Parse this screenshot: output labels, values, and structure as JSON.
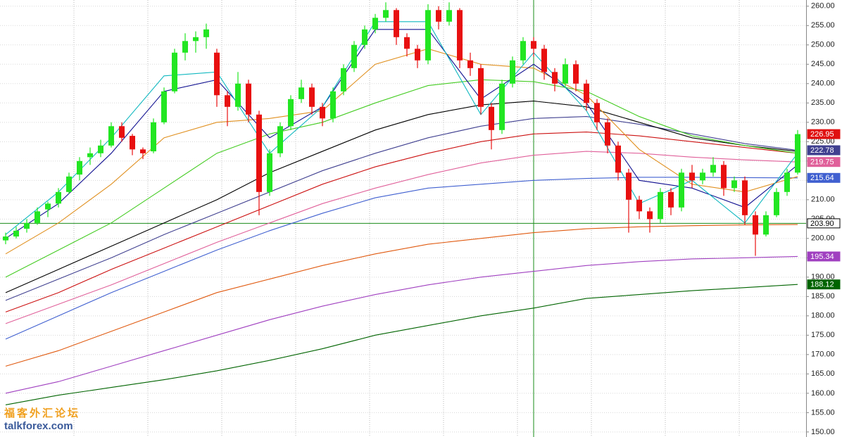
{
  "chart_data": {
    "type": "candlestick",
    "ylim": [
      148.7,
      261.6
    ],
    "yticks": [
      {
        "value": 150,
        "label": "150.00"
      },
      {
        "value": 155,
        "label": "155.00"
      },
      {
        "value": 160,
        "label": "160.00"
      },
      {
        "value": 165,
        "label": "165.00"
      },
      {
        "value": 170,
        "label": "170.00"
      },
      {
        "value": 175,
        "label": "175.00"
      },
      {
        "value": 180,
        "label": "180.00"
      },
      {
        "value": 185,
        "label": "185.00"
      },
      {
        "value": 190,
        "label": "190.00"
      },
      {
        "value": 195,
        "label": "195.00"
      },
      {
        "value": 200,
        "label": "200.00"
      },
      {
        "value": 205,
        "label": "205.00"
      },
      {
        "value": 210,
        "label": "210.00"
      },
      {
        "value": 215,
        "label": "215.00"
      },
      {
        "value": 220,
        "label": "220.00"
      },
      {
        "value": 225,
        "label": "225.00"
      },
      {
        "value": 230,
        "label": "230.00"
      },
      {
        "value": 235,
        "label": "235.00"
      },
      {
        "value": 240,
        "label": "240.00"
      },
      {
        "value": 245,
        "label": "245.00"
      },
      {
        "value": 250,
        "label": "250.00"
      },
      {
        "value": 255,
        "label": "255.00"
      },
      {
        "value": 260,
        "label": "260.00"
      }
    ],
    "grid": true,
    "up_color": "#22e622",
    "down_color": "#e81010",
    "price_flag_color": "#e01010",
    "ohlc": [
      [
        199.5,
        201.5,
        198.5,
        200.5
      ],
      [
        200.5,
        203,
        200,
        202
      ],
      [
        202.5,
        205,
        201.5,
        204
      ],
      [
        204,
        208,
        203.5,
        207
      ],
      [
        207.5,
        209.5,
        205.5,
        209
      ],
      [
        209,
        213,
        208,
        212
      ],
      [
        212,
        217,
        211.5,
        216
      ],
      [
        216.5,
        221,
        215,
        220
      ],
      [
        221,
        223.5,
        219,
        222
      ],
      [
        222,
        225.5,
        221,
        224
      ],
      [
        224,
        230,
        223.5,
        229
      ],
      [
        229,
        230,
        225,
        226
      ],
      [
        226.5,
        227,
        221.5,
        223
      ],
      [
        223,
        223.5,
        220.5,
        222
      ],
      [
        222.5,
        231,
        222,
        230
      ],
      [
        230,
        239,
        229.5,
        238
      ],
      [
        238,
        249,
        237.5,
        248
      ],
      [
        248,
        253,
        246,
        251
      ],
      [
        251,
        253.5,
        248,
        252
      ],
      [
        252,
        255.5,
        249,
        254
      ],
      [
        248,
        249,
        234,
        237
      ],
      [
        237,
        238,
        229,
        234
      ],
      [
        234,
        243,
        233,
        240
      ],
      [
        240,
        241,
        230,
        232
      ],
      [
        232,
        233,
        206,
        212
      ],
      [
        212,
        223,
        211,
        222
      ],
      [
        222,
        230,
        221,
        229
      ],
      [
        229,
        237,
        228,
        236
      ],
      [
        236,
        241,
        235,
        239
      ],
      [
        239,
        240,
        232,
        234
      ],
      [
        234,
        235,
        229,
        231
      ],
      [
        231,
        239,
        230,
        238
      ],
      [
        238,
        245,
        237,
        244
      ],
      [
        244,
        251,
        243,
        250
      ],
      [
        250,
        255,
        249,
        254
      ],
      [
        254,
        258,
        253,
        257
      ],
      [
        257,
        261,
        256,
        259
      ],
      [
        259,
        259.5,
        250,
        252
      ],
      [
        252,
        253,
        247,
        249
      ],
      [
        249,
        250,
        244,
        246
      ],
      [
        246,
        260.5,
        245,
        259
      ],
      [
        259,
        260,
        254,
        256
      ],
      [
        256,
        261,
        255,
        259
      ],
      [
        259,
        259.5,
        244,
        246
      ],
      [
        246,
        248,
        242,
        244
      ],
      [
        244,
        245,
        232,
        234
      ],
      [
        234,
        235,
        223,
        228
      ],
      [
        228,
        241,
        227,
        240
      ],
      [
        240,
        247,
        239,
        246
      ],
      [
        246,
        252,
        245,
        251
      ],
      [
        251,
        252,
        247,
        249
      ],
      [
        249,
        250,
        241,
        243
      ],
      [
        243,
        244,
        238,
        240
      ],
      [
        240,
        246.5,
        239,
        245
      ],
      [
        245,
        246,
        238,
        240
      ],
      [
        240,
        241,
        233,
        235
      ],
      [
        235,
        236,
        228,
        230
      ],
      [
        230,
        231,
        222,
        224
      ],
      [
        224,
        225,
        215,
        217
      ],
      [
        217,
        218,
        201.5,
        210
      ],
      [
        210,
        211,
        205,
        207
      ],
      [
        207,
        208,
        201.5,
        205
      ],
      [
        205,
        213,
        204,
        212
      ],
      [
        212,
        213,
        206,
        208
      ],
      [
        208,
        218,
        207,
        217
      ],
      [
        217,
        219,
        213,
        215
      ],
      [
        215,
        218,
        214,
        217
      ],
      [
        217,
        221,
        216,
        219
      ],
      [
        219,
        220,
        211,
        213
      ],
      [
        213,
        216,
        212,
        215
      ],
      [
        215,
        216,
        203.5,
        206
      ],
      [
        206,
        207,
        195.5,
        201
      ],
      [
        201,
        207,
        200.5,
        206
      ],
      [
        206,
        213,
        205.5,
        212
      ],
      [
        212,
        218,
        211,
        217
      ],
      [
        217,
        228,
        216.5,
        226.95
      ]
    ],
    "x": [
      0,
      5,
      10,
      15,
      20,
      25,
      30,
      35,
      40,
      45,
      50,
      55,
      60,
      65,
      70,
      75
    ],
    "series": [
      {
        "color": "#006400",
        "values": [
          157,
          159.5,
          161.5,
          163.5,
          165.8,
          168.5,
          171.5,
          175,
          177.5,
          180,
          182,
          184.5,
          185.5,
          186.5,
          187.3,
          188.12
        ],
        "flag": true
      },
      {
        "color": "#a040c0",
        "values": [
          160,
          163,
          167,
          171,
          175,
          179,
          182.5,
          185.5,
          188,
          190,
          191.5,
          193,
          194,
          194.7,
          195,
          195.34
        ],
        "flag": true
      },
      {
        "color": "#e05a10",
        "values": [
          167,
          171,
          176,
          181,
          186,
          189.5,
          193,
          196,
          198.5,
          200,
          201.5,
          202.5,
          203,
          203.3,
          203.5,
          203.6
        ],
        "flag": false
      },
      {
        "color": "#4060d0",
        "values": [
          174,
          180,
          186,
          191.5,
          197,
          202,
          206.5,
          210.5,
          213,
          214,
          215,
          215.5,
          215.8,
          215.8,
          215.7,
          215.64
        ],
        "flag": true
      },
      {
        "color": "#e0609a",
        "values": [
          178,
          183,
          188,
          193.5,
          199,
          204,
          209,
          213,
          216.5,
          219.5,
          221.5,
          222.5,
          222,
          221,
          220.3,
          219.75
        ],
        "flag": true
      },
      {
        "color": "#cc1111",
        "values": [
          181,
          186,
          192,
          197.5,
          203,
          208.5,
          214,
          218.5,
          222,
          225,
          227,
          227.5,
          226.5,
          225,
          223.5,
          222
        ],
        "flag": false
      },
      {
        "color": "#404090",
        "values": [
          184,
          189.5,
          195,
          201,
          206.5,
          212,
          217.5,
          222,
          226,
          229,
          231,
          231.5,
          229.5,
          227,
          224.5,
          222.78
        ],
        "flag": true
      },
      {
        "color": "#000000",
        "values": [
          186,
          192,
          198,
          204,
          210,
          217,
          222.5,
          228,
          232,
          234.5,
          235.5,
          234,
          230,
          226,
          224,
          222.5
        ],
        "flag": false
      },
      {
        "color": "#44cc22",
        "values": [
          190,
          197,
          204,
          213,
          222,
          227,
          230,
          235,
          239.5,
          241,
          240.5,
          238,
          231.5,
          226.5,
          224,
          222
        ],
        "flag": false
      },
      {
        "color": "#e09020",
        "values": [
          196,
          204,
          214,
          226,
          230,
          231,
          233,
          245,
          249,
          245,
          244,
          237,
          223,
          214,
          212,
          216
        ],
        "flag": false
      },
      {
        "color": "#101090",
        "values": [
          200,
          209,
          222,
          238,
          241,
          226,
          234,
          254,
          254,
          236,
          245,
          235,
          215,
          213,
          208,
          219
        ],
        "flag": false
      },
      {
        "color": "#10b8c0",
        "values": [
          201,
          212,
          226,
          242,
          243,
          222,
          234,
          256,
          256,
          232,
          248,
          233,
          209,
          215,
          204,
          222
        ],
        "flag": false
      }
    ],
    "crosshair": {
      "value": 203.9,
      "label": "203.90"
    }
  },
  "watermark": {
    "name": "福客外汇论坛",
    "site": "talkforex.com"
  }
}
